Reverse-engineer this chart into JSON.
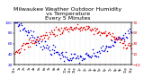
{
  "title": "Milwaukee Weather Outdoor Humidity\nvs Temperature\nEvery 5 Minutes",
  "title_fontsize": 4.5,
  "background_color": "#ffffff",
  "plot_bg_color": "#ffffff",
  "grid_color": "#bbbbbb",
  "humidity_color": "#0000dd",
  "temp_color": "#dd0000",
  "ylim_left": [
    20,
    100
  ],
  "ylim_right": [
    -10,
    70
  ],
  "left_yticks": [
    20,
    40,
    60,
    80,
    100
  ],
  "right_yticks": [
    -10,
    10,
    30,
    50,
    70
  ],
  "tick_fontsize": 3.0,
  "marker_size": 1.2,
  "num_points": 144,
  "seed": 7
}
